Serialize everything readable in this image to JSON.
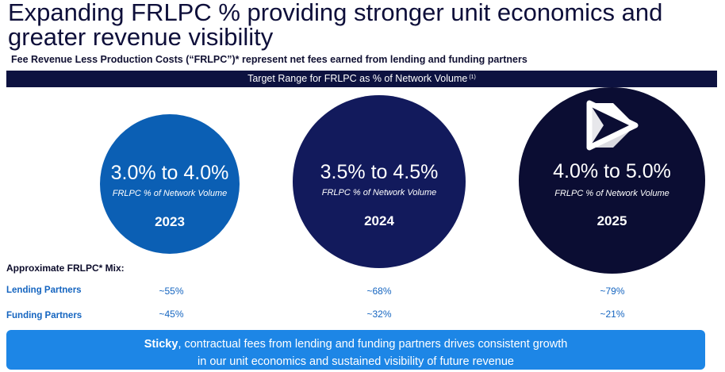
{
  "title_line1": "Expanding FRLPC % providing stronger unit economics and",
  "title_line2": "greater revenue visibility",
  "subtitle": "Fee Revenue Less Production Costs (“FRLPC”)* represent net fees earned from lending and funding partners",
  "bar": {
    "text": "Target Range for FRLPC as % of Network Volume",
    "footnote": "(1)"
  },
  "circles": [
    {
      "range": "3.0% to 4.0%",
      "metric": "FRLPC % of Network Volume",
      "year": "2023",
      "color": "#0b5fb4"
    },
    {
      "range": "3.5% to 4.5%",
      "metric": "FRLPC % of Network Volume",
      "year": "2024",
      "color": "#121a5c"
    },
    {
      "range": "4.0% to 5.0%",
      "metric": "FRLPC % of Network Volume",
      "year": "2025",
      "color": "#0b0d33"
    }
  ],
  "logo_icon": "play-triangle-logo-icon",
  "mix": {
    "title": "Approximate FRLPC* Mix:",
    "rows": [
      {
        "label": "Lending Partners",
        "values": [
          "~55%",
          "~68%",
          "~79%"
        ]
      },
      {
        "label": "Funding Partners",
        "values": [
          "~45%",
          "~32%",
          "~21%"
        ]
      }
    ]
  },
  "banner": {
    "bold": "Sticky",
    "line1_rest": ", contractual fees from lending and funding partners drives consistent growth",
    "line2": "in our unit economics and sustained visibility of future revenue",
    "color": "#1d86e6"
  }
}
